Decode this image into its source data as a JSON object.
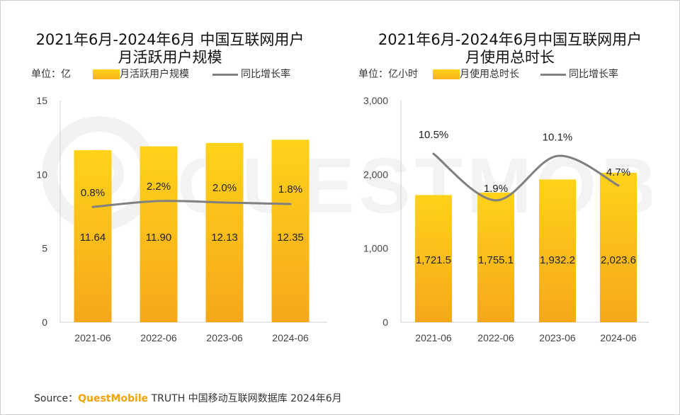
{
  "left": {
    "title_line1": "2021年6月-2024年6月 中国互联网用户",
    "title_line2": "月活跃用户规模",
    "unit": "单位：亿",
    "legend_bar": "月活跃用户规模",
    "legend_line": "同比增长率"
  },
  "right": {
    "title_line1": "2021年6月-2024年6月中国互联网用户",
    "title_line2": "月使用总时长",
    "unit": "单位：亿小时",
    "legend_bar": "月使用总时长",
    "legend_line": "同比增长率"
  },
  "source": {
    "prefix": "Source：",
    "brand": "QuestMobile",
    "rest": "TRUTH 中国移动互联网数据库 2024年6月"
  },
  "watermark_text": "QUESTMOBILE",
  "colors": {
    "bar_top": "#ffd21a",
    "bar_bottom": "#f5a81a",
    "line": "#808080"
  },
  "chart_data": [
    {
      "type": "bar",
      "categories": [
        "2021-06",
        "2022-06",
        "2023-06",
        "2024-06"
      ],
      "series": [
        {
          "name": "月活跃用户规模",
          "type": "bar",
          "values": [
            11.64,
            11.9,
            12.13,
            12.35
          ],
          "labels": [
            "11.64",
            "11.90",
            "12.13",
            "12.35"
          ]
        },
        {
          "name": "同比增长率",
          "type": "line",
          "values": [
            0.8,
            2.2,
            2.0,
            1.8
          ],
          "labels": [
            "0.8%",
            "2.2%",
            "2.0%",
            "1.8%"
          ]
        }
      ],
      "ylim": [
        0,
        15
      ],
      "yticks": [
        "0",
        "5",
        "10",
        "15"
      ],
      "y_tick_values": [
        0,
        5,
        10,
        15
      ],
      "line_y_position_values": [
        7.8,
        8.2,
        8.1,
        8.0
      ]
    },
    {
      "type": "bar",
      "categories": [
        "2021-06",
        "2022-06",
        "2023-06",
        "2024-06"
      ],
      "series": [
        {
          "name": "月使用总时长",
          "type": "bar",
          "values": [
            1721.5,
            1755.1,
            1932.2,
            2023.6
          ],
          "labels": [
            "1,721.5",
            "1,755.1",
            "1,932.2",
            "2,023.6"
          ]
        },
        {
          "name": "同比增长率",
          "type": "line",
          "values": [
            10.5,
            1.9,
            10.1,
            4.7
          ],
          "labels": [
            "10.5%",
            "1.9%",
            "10.1%",
            "4.7%"
          ]
        }
      ],
      "ylim": [
        0,
        3000
      ],
      "yticks": [
        "0",
        "1,000",
        "2,000",
        "3,000"
      ],
      "y_tick_values": [
        0,
        1000,
        2000,
        3000
      ],
      "line_y_position_values": [
        2280,
        1650,
        2250,
        1850
      ]
    }
  ]
}
